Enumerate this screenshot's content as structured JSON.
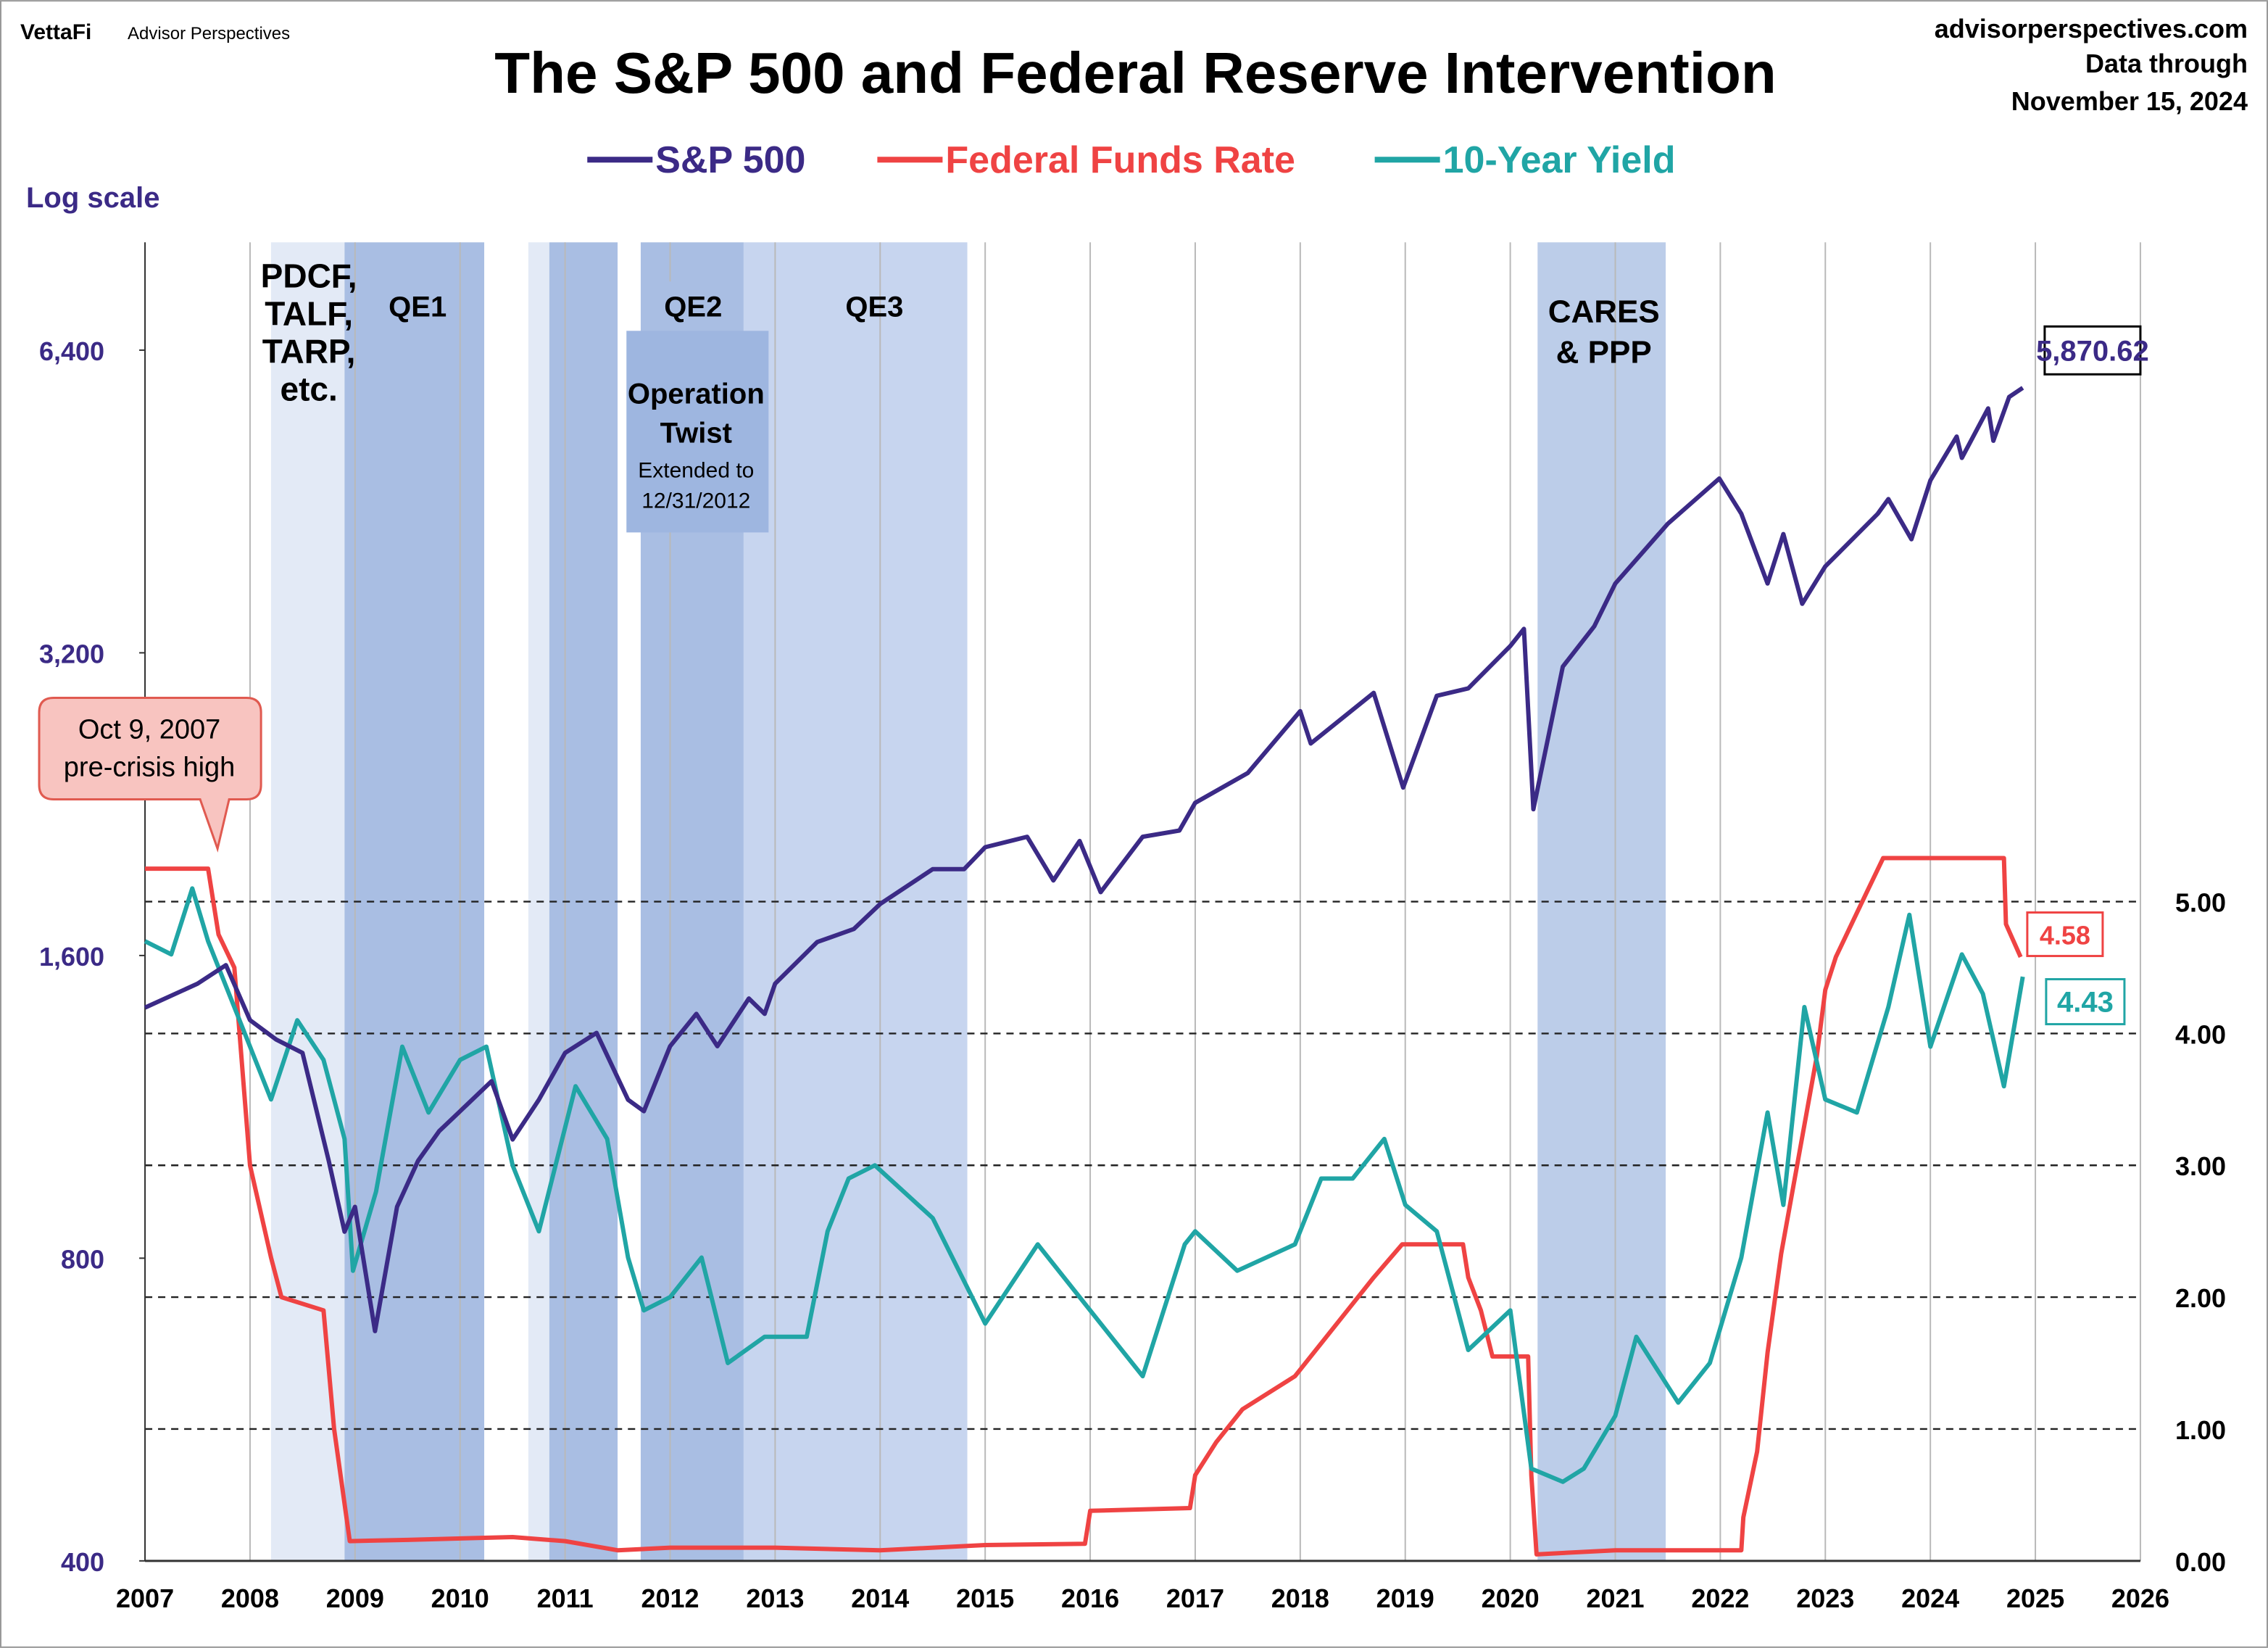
{
  "header": {
    "brand": "VettaFi",
    "brand_sub": "Advisor Perspectives",
    "site": "advisorperspectives.com",
    "through": "Data through",
    "date": "November 15, 2024"
  },
  "chart_data": {
    "type": "line",
    "title": "The S&P 500 and Federal Reserve Intervention",
    "y_note": "Log scale",
    "log_y": true,
    "grid": true,
    "xlim": [
      2007,
      2026
    ],
    "xticks": [
      2007,
      2008,
      2009,
      2010,
      2011,
      2012,
      2013,
      2014,
      2015,
      2016,
      2017,
      2018,
      2019,
      2020,
      2021,
      2022,
      2023,
      2024,
      2025,
      2026
    ],
    "ylim": [
      400,
      8192
    ],
    "yticks": [
      400,
      800,
      {
        "value": 1600,
        "label": "1,600"
      },
      {
        "value": 3200,
        "label": "3,200"
      },
      {
        "value": 6400,
        "label": "6,400"
      }
    ],
    "y2lim": [
      0,
      10
    ],
    "y2ticks": [
      {
        "value": 0,
        "label": "0.00"
      },
      {
        "value": 1,
        "label": "1.00"
      },
      {
        "value": 2,
        "label": "2.00"
      },
      {
        "value": 3,
        "label": "3.00"
      },
      {
        "value": 4,
        "label": "4.00"
      },
      {
        "value": 5,
        "label": "5.00"
      }
    ],
    "regions": [
      {
        "start": 2008.2,
        "end": 2008.9,
        "color": "#e3eaf6"
      },
      {
        "start": 2008.9,
        "end": 2010.23,
        "color": "#a9bee3"
      },
      {
        "start": 2010.65,
        "end": 2010.85,
        "color": "#e3eaf6"
      },
      {
        "start": 2010.85,
        "end": 2011.5,
        "color": "#a9bee3"
      },
      {
        "start": 2011.72,
        "end": 2012.7,
        "color": "#a9bee3"
      },
      {
        "start": 2012.7,
        "end": 2014.83,
        "color": "#c7d5ef"
      },
      {
        "start": 2020.26,
        "end": 2021.48,
        "color": "#bccde9"
      }
    ],
    "region_labels": [
      {
        "lines": [
          "PDCF,",
          "TALF,",
          "TARP,",
          "etc."
        ]
      },
      {
        "lines": [
          "QE1"
        ]
      },
      {
        "lines": [
          "QE2"
        ]
      },
      {
        "lines": [
          "Operation",
          "Twist"
        ]
      },
      {
        "lines": [
          "Extended to",
          "12/31/2012"
        ]
      },
      {
        "lines": [
          "QE3"
        ]
      },
      {
        "lines": [
          "CARES",
          "& PPP"
        ]
      }
    ],
    "callout": {
      "lines": [
        "Oct 9, 2007",
        "pre-crisis high"
      ]
    },
    "series": [
      {
        "name": "S&P 500",
        "color": "#3b2a86",
        "end_label": "5,870.62",
        "x": [
          2007.0,
          2007.5,
          2007.77,
          2008.0,
          2008.25,
          2008.5,
          2008.75,
          2008.9,
          2009.0,
          2009.19,
          2009.4,
          2009.6,
          2009.8,
          2010.0,
          2010.3,
          2010.5,
          2010.75,
          2011.0,
          2011.3,
          2011.6,
          2011.75,
          2012.0,
          2012.25,
          2012.45,
          2012.75,
          2012.9,
          2013.0,
          2013.4,
          2013.75,
          2014.0,
          2014.5,
          2014.8,
          2015.0,
          2015.4,
          2015.65,
          2015.9,
          2016.1,
          2016.5,
          2016.85,
          2017.0,
          2017.5,
          2018.0,
          2018.1,
          2018.7,
          2018.98,
          2019.3,
          2019.6,
          2020.0,
          2020.13,
          2020.22,
          2020.5,
          2020.8,
          2021.0,
          2021.5,
          2021.99,
          2022.2,
          2022.45,
          2022.6,
          2022.78,
          2023.0,
          2023.5,
          2023.6,
          2023.82,
          2024.0,
          2024.25,
          2024.3,
          2024.55,
          2024.6,
          2024.75,
          2024.88
        ],
        "values": [
          1420,
          1500,
          1565,
          1380,
          1320,
          1280,
          1000,
          850,
          900,
          677,
          900,
          1000,
          1070,
          1120,
          1200,
          1050,
          1150,
          1280,
          1340,
          1150,
          1120,
          1300,
          1400,
          1300,
          1450,
          1400,
          1500,
          1650,
          1700,
          1800,
          1950,
          1950,
          2050,
          2100,
          1900,
          2080,
          1850,
          2100,
          2130,
          2270,
          2430,
          2800,
          2600,
          2920,
          2350,
          2900,
          2950,
          3250,
          3380,
          2237,
          3100,
          3400,
          3750,
          4300,
          4770,
          4400,
          3750,
          4200,
          3580,
          3900,
          4400,
          4550,
          4150,
          4750,
          5250,
          5000,
          5600,
          5200,
          5750,
          5870.62
        ]
      },
      {
        "name": "Federal Funds Rate",
        "color": "#ef4343",
        "axis": "y2",
        "end_label": "4.58",
        "x": [
          2007.0,
          2007.6,
          2007.7,
          2007.85,
          2008.0,
          2008.2,
          2008.3,
          2008.7,
          2008.8,
          2008.95,
          2009.5,
          2010.5,
          2011.0,
          2011.5,
          2012.0,
          2013.0,
          2014.0,
          2015.0,
          2015.95,
          2016.0,
          2016.95,
          2017.0,
          2017.2,
          2017.45,
          2017.95,
          2018.2,
          2018.45,
          2018.7,
          2018.97,
          2019.55,
          2019.6,
          2019.72,
          2019.83,
          2020.17,
          2020.2,
          2020.25,
          2021.0,
          2022.2,
          2022.22,
          2022.35,
          2022.45,
          2022.58,
          2022.75,
          2022.92,
          2023.0,
          2023.1,
          2023.25,
          2023.4,
          2023.55,
          2024.7,
          2024.72,
          2024.86
        ],
        "values": [
          5.25,
          5.25,
          4.75,
          4.5,
          3.0,
          2.3,
          2.0,
          1.9,
          1.0,
          0.15,
          0.16,
          0.18,
          0.15,
          0.08,
          0.1,
          0.1,
          0.08,
          0.12,
          0.13,
          0.38,
          0.4,
          0.65,
          0.9,
          1.15,
          1.4,
          1.65,
          1.9,
          2.15,
          2.4,
          2.4,
          2.15,
          1.9,
          1.55,
          1.55,
          0.65,
          0.05,
          0.08,
          0.08,
          0.33,
          0.83,
          1.58,
          2.33,
          3.08,
          3.83,
          4.33,
          4.58,
          4.83,
          5.08,
          5.33,
          5.33,
          4.83,
          4.58
        ]
      },
      {
        "name": "10-Year Yield",
        "color": "#20a5a5",
        "axis": "y2",
        "end_label": "4.43",
        "x": [
          2007.0,
          2007.25,
          2007.45,
          2007.6,
          2007.9,
          2008.2,
          2008.45,
          2008.7,
          2008.9,
          2008.98,
          2009.2,
          2009.45,
          2009.7,
          2010.0,
          2010.25,
          2010.5,
          2010.75,
          2011.1,
          2011.4,
          2011.6,
          2011.75,
          2012.0,
          2012.3,
          2012.55,
          2012.9,
          2013.3,
          2013.5,
          2013.7,
          2013.95,
          2014.5,
          2015.0,
          2015.5,
          2015.8,
          2016.1,
          2016.5,
          2016.9,
          2017.0,
          2017.4,
          2017.95,
          2018.2,
          2018.5,
          2018.8,
          2019.0,
          2019.3,
          2019.6,
          2020.0,
          2020.2,
          2020.5,
          2020.7,
          2021.0,
          2021.2,
          2021.6,
          2021.9,
          2022.2,
          2022.45,
          2022.6,
          2022.8,
          2023.0,
          2023.3,
          2023.6,
          2023.8,
          2024.0,
          2024.3,
          2024.5,
          2024.7,
          2024.88
        ],
        "values": [
          4.7,
          4.6,
          5.1,
          4.7,
          4.1,
          3.5,
          4.1,
          3.8,
          3.2,
          2.2,
          2.8,
          3.9,
          3.4,
          3.8,
          3.9,
          3.0,
          2.5,
          3.6,
          3.2,
          2.3,
          1.9,
          2.0,
          2.3,
          1.5,
          1.7,
          1.7,
          2.5,
          2.9,
          3.0,
          2.6,
          1.8,
          2.4,
          2.1,
          1.8,
          1.4,
          2.4,
          2.5,
          2.2,
          2.4,
          2.9,
          2.9,
          3.2,
          2.7,
          2.5,
          1.6,
          1.9,
          0.7,
          0.6,
          0.7,
          1.1,
          1.7,
          1.2,
          1.5,
          2.3,
          3.4,
          2.7,
          4.2,
          3.5,
          3.4,
          4.2,
          4.9,
          3.9,
          4.6,
          4.3,
          3.6,
          4.43
        ]
      }
    ]
  }
}
